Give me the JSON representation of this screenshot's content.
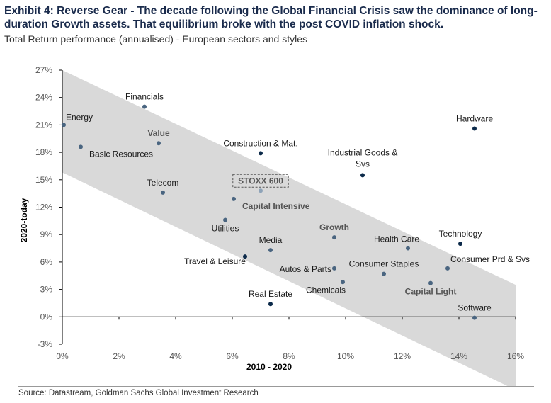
{
  "title": "Exhibit 4: Reverse Gear - The decade following the Global Financial Crisis saw the dominance of long-duration Growth assets. That equilibrium broke with the post COVID inflation shock.",
  "subtitle": "Total Return performance (annualised) - European sectors and styles",
  "source": "Source: Datastream, Goldman Sachs Global Investment Research",
  "colors": {
    "band": "#d9d9d9",
    "point_dark": "#0c2a4a",
    "point_mid": "#4a6580",
    "point_light": "#8ea3b8",
    "axis": "#000000"
  },
  "chart_data": {
    "type": "scatter",
    "xlabel": "2010 - 2020",
    "ylabel": "2020-today",
    "xlim": [
      0,
      16
    ],
    "ylim": [
      -3,
      27
    ],
    "x_ticks": [
      0,
      2,
      4,
      6,
      8,
      10,
      12,
      14,
      16
    ],
    "y_ticks": [
      -3,
      0,
      3,
      6,
      9,
      12,
      15,
      18,
      21,
      24,
      27
    ],
    "x_tick_labels": [
      "0%",
      "2%",
      "4%",
      "6%",
      "8%",
      "10%",
      "12%",
      "14%",
      "16%"
    ],
    "y_tick_labels": [
      "-3%",
      "0%",
      "3%",
      "6%",
      "9%",
      "12%",
      "15%",
      "18%",
      "21%",
      "24%",
      "27%"
    ],
    "band": {
      "upper": [
        [
          0,
          27
        ],
        [
          16,
          3.5
        ]
      ],
      "lower": [
        [
          0,
          15.8
        ],
        [
          16,
          -8
        ]
      ]
    },
    "points": [
      {
        "label": "Energy",
        "x": 0.05,
        "y": 21.0,
        "shade": "mid",
        "bold": false,
        "boxed": false,
        "label_pos": "right-up"
      },
      {
        "label": "Basic Resources",
        "x": 0.65,
        "y": 18.6,
        "shade": "mid",
        "bold": false,
        "boxed": false,
        "label_pos": "right-down"
      },
      {
        "label": "Financials",
        "x": 2.9,
        "y": 23.0,
        "shade": "mid",
        "bold": false,
        "boxed": false,
        "label_pos": "above"
      },
      {
        "label": "Value",
        "x": 3.4,
        "y": 19.0,
        "shade": "mid",
        "bold": true,
        "boxed": false,
        "label_pos": "above"
      },
      {
        "label": "Telecom",
        "x": 3.55,
        "y": 13.6,
        "shade": "mid",
        "bold": false,
        "boxed": false,
        "label_pos": "above"
      },
      {
        "label": "Construction & Mat.",
        "x": 7.0,
        "y": 17.9,
        "shade": "dark",
        "bold": false,
        "boxed": false,
        "label_pos": "above"
      },
      {
        "label": "STOXX 600",
        "x": 7.0,
        "y": 13.8,
        "shade": "light",
        "bold": true,
        "boxed": true,
        "label_pos": "above"
      },
      {
        "label": "Capital Intensive",
        "x": 6.05,
        "y": 12.9,
        "shade": "mid",
        "bold": true,
        "boxed": false,
        "label_pos": "right-down"
      },
      {
        "label": "Utilities",
        "x": 5.75,
        "y": 10.6,
        "shade": "mid",
        "bold": false,
        "boxed": false,
        "label_pos": "below"
      },
      {
        "label": "Media",
        "x": 7.35,
        "y": 7.3,
        "shade": "mid",
        "bold": false,
        "boxed": false,
        "label_pos": "above"
      },
      {
        "label": "Travel & Leisure",
        "x": 6.45,
        "y": 6.6,
        "shade": "dark",
        "bold": false,
        "boxed": false,
        "label_pos": "left-down"
      },
      {
        "label": "Real Estate",
        "x": 7.35,
        "y": 1.4,
        "shade": "dark",
        "bold": false,
        "boxed": false,
        "label_pos": "above"
      },
      {
        "label": "Industrial Goods & Svs",
        "x": 10.6,
        "y": 15.5,
        "shade": "dark",
        "bold": false,
        "boxed": false,
        "label_pos": "above-2line"
      },
      {
        "label": "Growth",
        "x": 9.6,
        "y": 8.7,
        "shade": "mid",
        "bold": true,
        "boxed": false,
        "label_pos": "above"
      },
      {
        "label": "Autos & Parts",
        "x": 9.6,
        "y": 5.3,
        "shade": "mid",
        "bold": false,
        "boxed": false,
        "label_pos": "left"
      },
      {
        "label": "Chemicals",
        "x": 9.9,
        "y": 3.8,
        "shade": "mid",
        "bold": false,
        "boxed": false,
        "label_pos": "below-left"
      },
      {
        "label": "Consumer Staples",
        "x": 11.35,
        "y": 4.7,
        "shade": "mid",
        "bold": false,
        "boxed": false,
        "label_pos": "above"
      },
      {
        "label": "Health Care",
        "x": 12.2,
        "y": 7.5,
        "shade": "mid",
        "bold": false,
        "boxed": false,
        "label_pos": "above-left"
      },
      {
        "label": "Capital Light",
        "x": 13.0,
        "y": 3.7,
        "shade": "mid",
        "bold": true,
        "boxed": false,
        "label_pos": "below"
      },
      {
        "label": "Consumer Prd & Svs",
        "x": 13.6,
        "y": 5.3,
        "shade": "mid",
        "bold": false,
        "boxed": false,
        "label_pos": "above-right"
      },
      {
        "label": "Technology",
        "x": 14.05,
        "y": 8.0,
        "shade": "dark",
        "bold": false,
        "boxed": false,
        "label_pos": "above"
      },
      {
        "label": "Hardware",
        "x": 14.55,
        "y": 20.6,
        "shade": "dark",
        "bold": false,
        "boxed": false,
        "label_pos": "above"
      },
      {
        "label": "Software",
        "x": 14.55,
        "y": -0.1,
        "shade": "mid",
        "bold": false,
        "boxed": false,
        "label_pos": "above"
      }
    ]
  }
}
